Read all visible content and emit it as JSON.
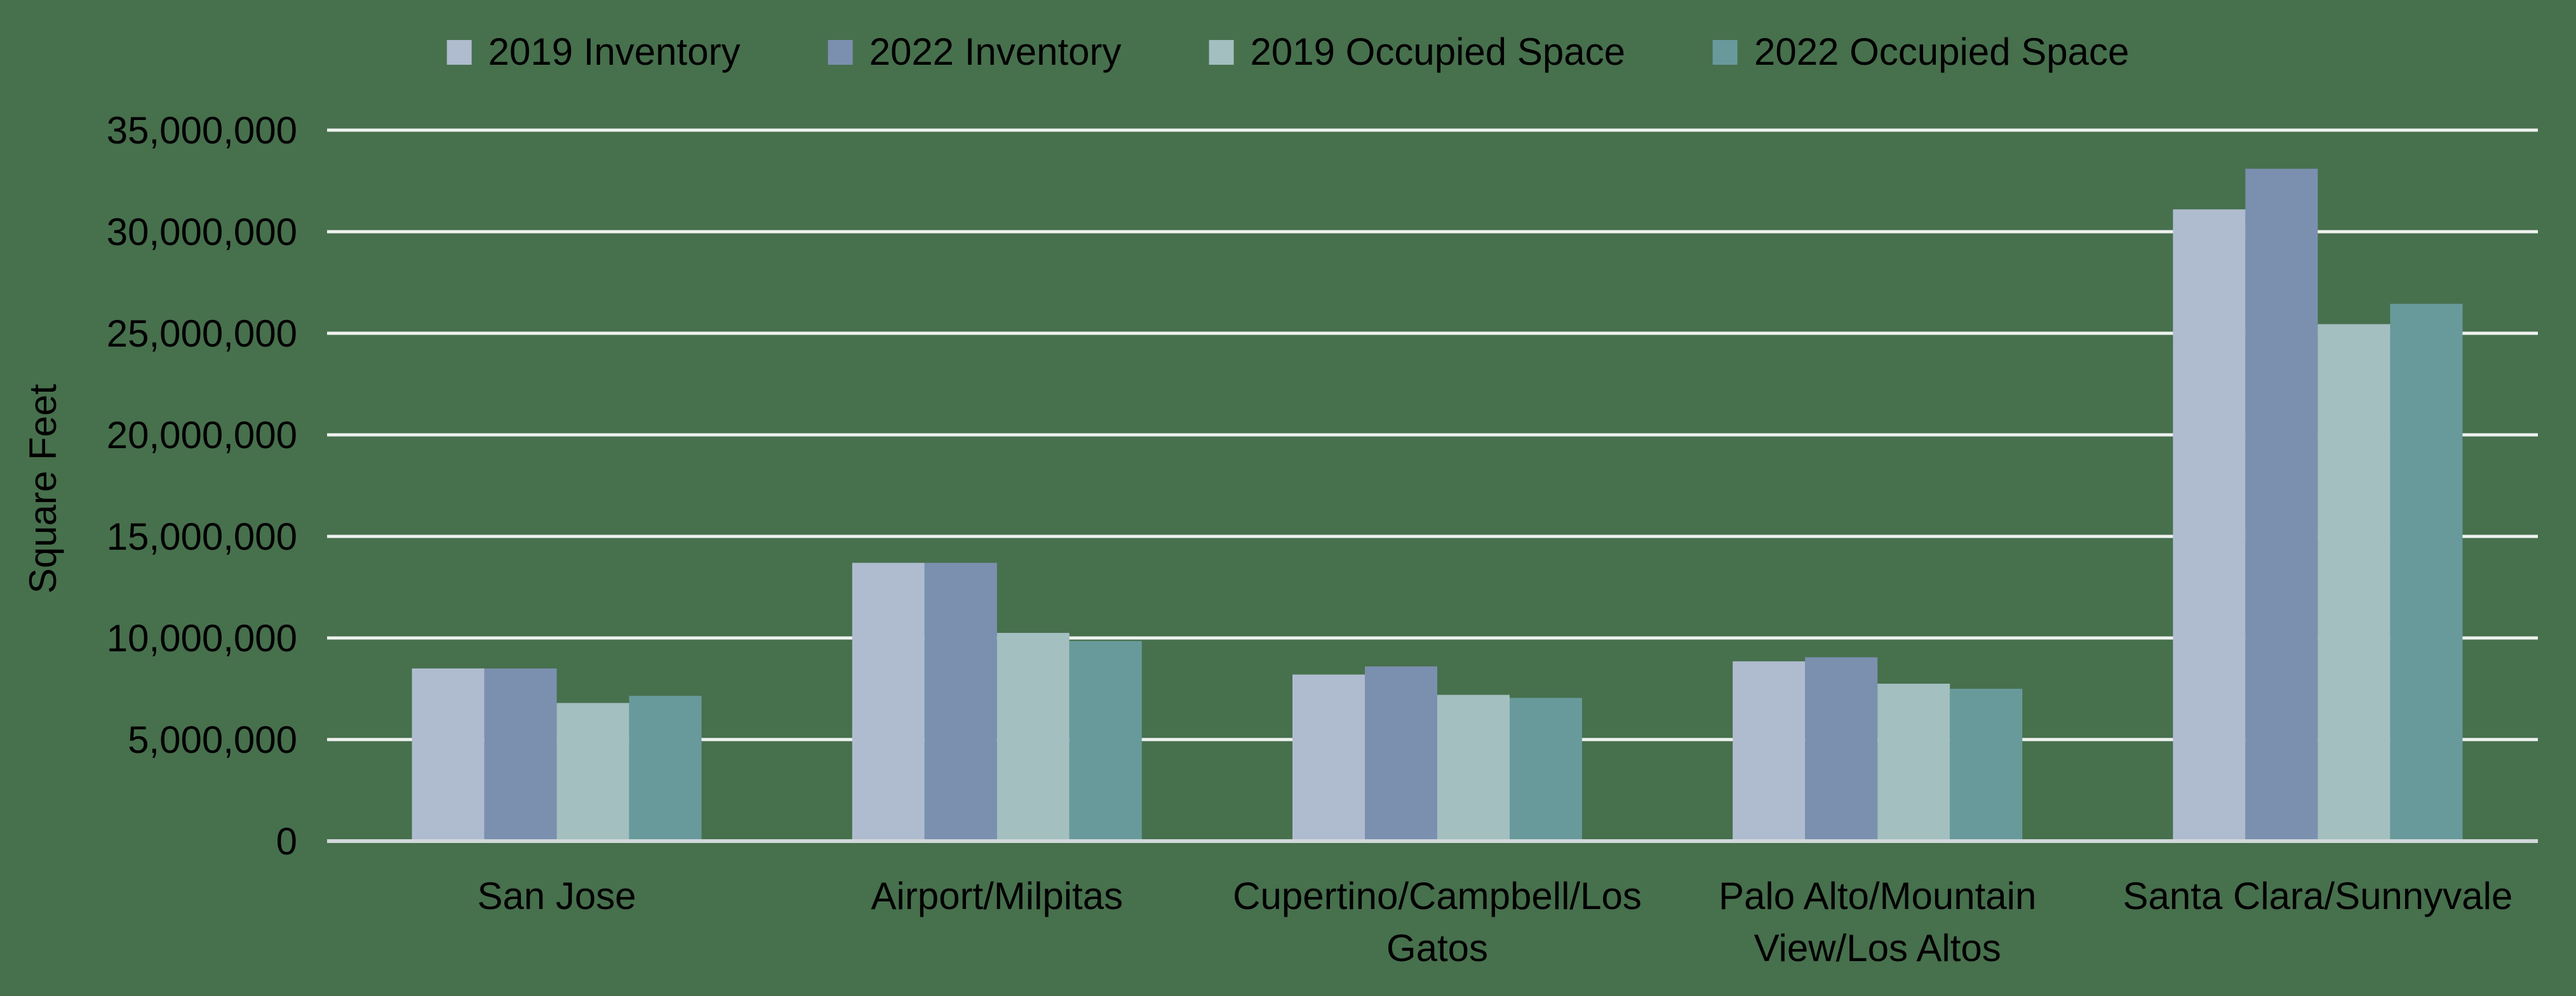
{
  "chart": {
    "background_color": "#47704D",
    "gridline_color": "#EEF2EF",
    "axis_line_color": "#D2D8DA",
    "text_color": "#000000"
  },
  "chart_data": {
    "type": "bar",
    "title": "",
    "xlabel": "",
    "ylabel": "Square Feet",
    "grid": true,
    "legend_position": "top",
    "ylim": [
      0,
      35000000
    ],
    "ytick_interval": 5000000,
    "ytick_labels": [
      "0",
      "5,000,000",
      "10,000,000",
      "15,000,000",
      "20,000,000",
      "25,000,000",
      "30,000,000",
      "35,000,000"
    ],
    "categories": [
      "San Jose",
      "Airport/Milpitas",
      "Cupertino/Campbell/Los Gatos",
      "Palo Alto/Mountain View/Los Altos",
      "Santa Clara/Sunnyvale"
    ],
    "category_lines": [
      [
        "San Jose"
      ],
      [
        "Airport/Milpitas"
      ],
      [
        "Cupertino/Campbell/Los",
        "Gatos"
      ],
      [
        "Palo Alto/Mountain",
        "View/Los Altos"
      ],
      [
        "Santa Clara/Sunnyvale"
      ]
    ],
    "series": [
      {
        "name": "2019 Inventory",
        "color": "#AFBCCF",
        "values": [
          8500000,
          13700000,
          8200000,
          8850000,
          31100000
        ]
      },
      {
        "name": "2022 Inventory",
        "color": "#7B90AF",
        "values": [
          8500000,
          13700000,
          8600000,
          9050000,
          33100000
        ]
      },
      {
        "name": "2019 Occupied Space",
        "color": "#A3BFC0",
        "values": [
          6800000,
          10250000,
          7200000,
          7750000,
          25450000
        ]
      },
      {
        "name": "2022 Occupied Space",
        "color": "#689A9C",
        "values": [
          7150000,
          9850000,
          7050000,
          7500000,
          26450000
        ]
      }
    ]
  }
}
